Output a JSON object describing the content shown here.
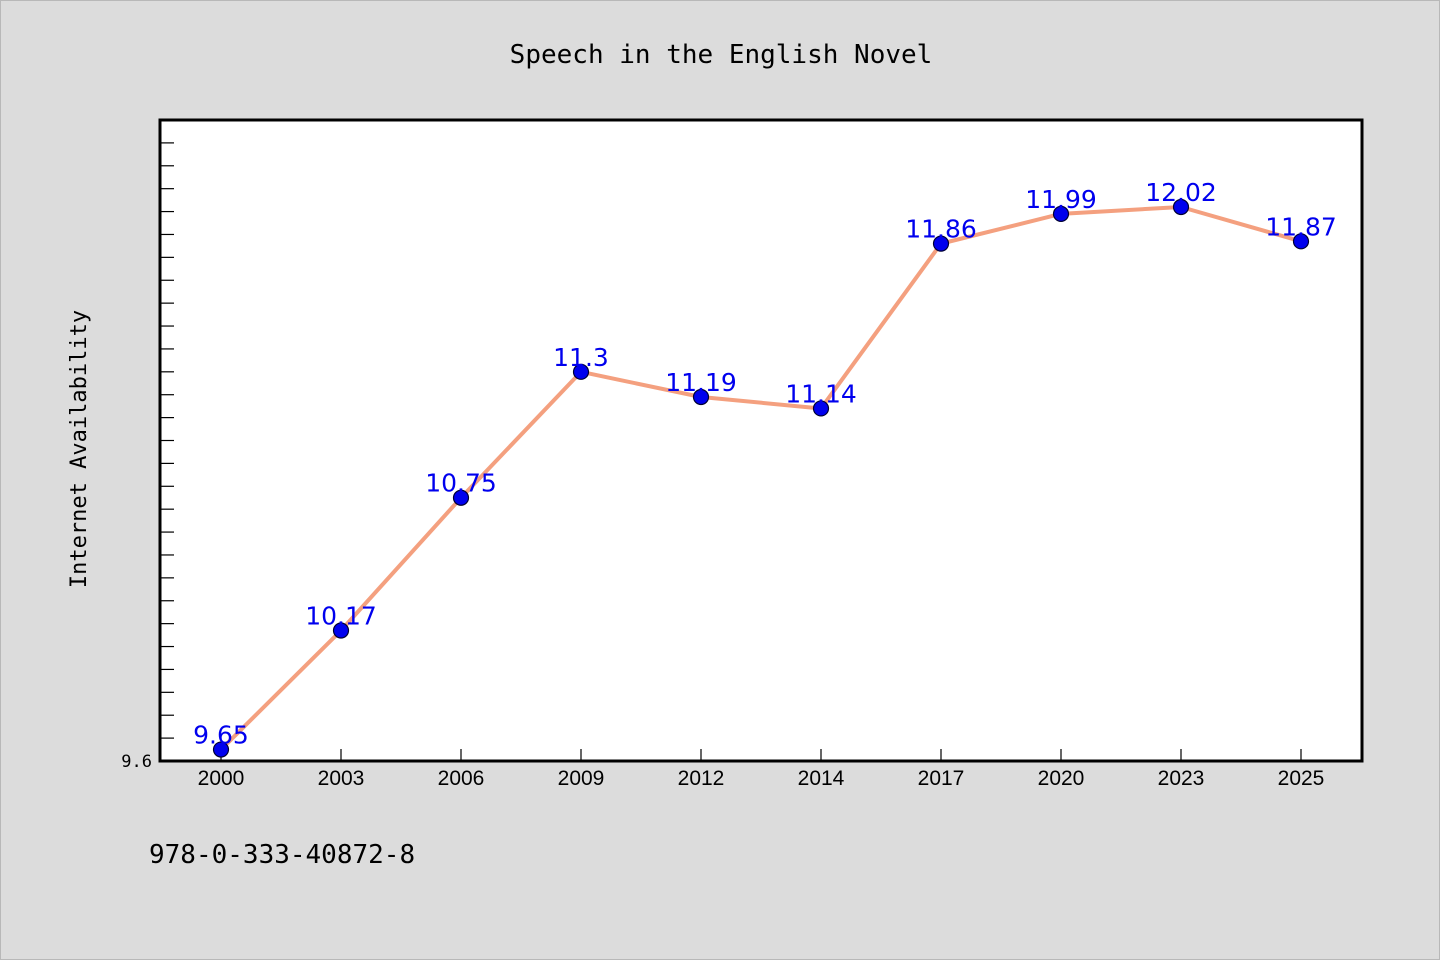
{
  "chart_data": {
    "type": "line",
    "title": "Speech in the English Novel",
    "xlabel": "",
    "ylabel": "Internet Availability",
    "categories": [
      "2000",
      "2003",
      "2006",
      "2009",
      "2012",
      "2014",
      "2017",
      "2020",
      "2023",
      "2025"
    ],
    "series": [
      {
        "values": [
          9.65,
          10.17,
          10.75,
          11.3,
          11.19,
          11.14,
          11.86,
          11.99,
          12.02,
          11.87
        ],
        "labels": [
          "9.65",
          "10.17",
          "10.75",
          "11.3",
          "11.19",
          "11.14",
          "11.86",
          "11.99",
          "12.02",
          "11.87"
        ]
      }
    ],
    "ylim": [
      9.6,
      12.4
    ],
    "y_tick_labels": [
      {
        "value": 9.6,
        "label": "9.6"
      }
    ],
    "y_minor_tick_step": 0.1,
    "grid": false,
    "legend": "none",
    "colors": {
      "line": "#f4a07f",
      "marker": "#0000ee",
      "marker_edge": "#000033",
      "data_label": "#0000ee",
      "background": "#dcdcdc",
      "plot_background": "#ffffff"
    }
  },
  "footer": {
    "isbn": "978-0-333-40872-8"
  }
}
